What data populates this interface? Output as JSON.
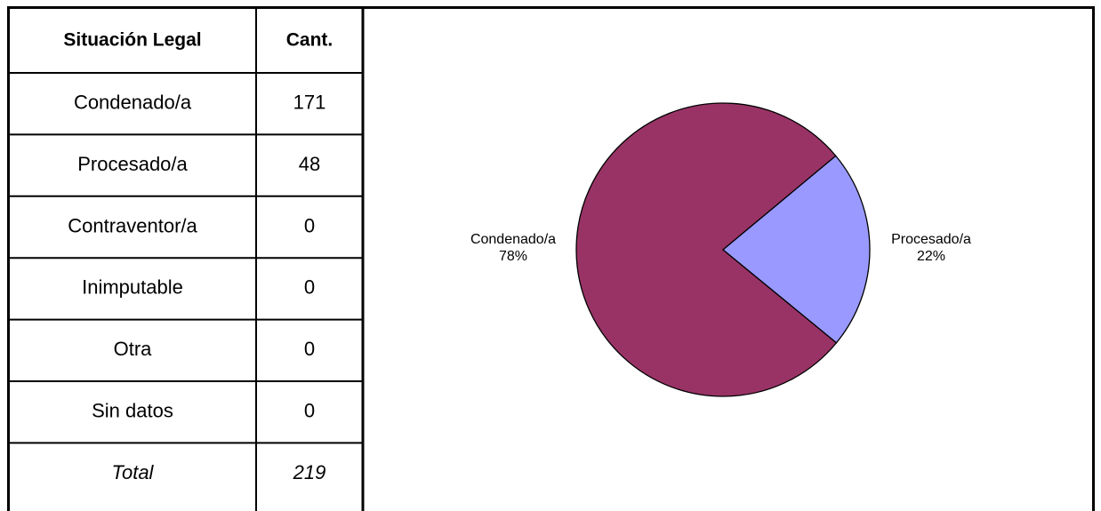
{
  "table": {
    "header": [
      "Situación Legal",
      "Cant."
    ],
    "rows": [
      [
        "Condenado/a",
        171
      ],
      [
        "Procesado/a",
        48
      ],
      [
        "Contraventor/a",
        0
      ],
      [
        "Inimputable",
        0
      ],
      [
        "Otra",
        0
      ],
      [
        "Sin datos",
        0
      ]
    ],
    "total": [
      "Total",
      219
    ]
  },
  "chart_data": {
    "type": "pie",
    "categories": [
      "Condenado/a",
      "Procesado/a"
    ],
    "values": [
      78,
      22
    ],
    "value_labels": [
      "78%",
      "22%"
    ],
    "colors": [
      "#993366",
      "#9999ff"
    ]
  }
}
